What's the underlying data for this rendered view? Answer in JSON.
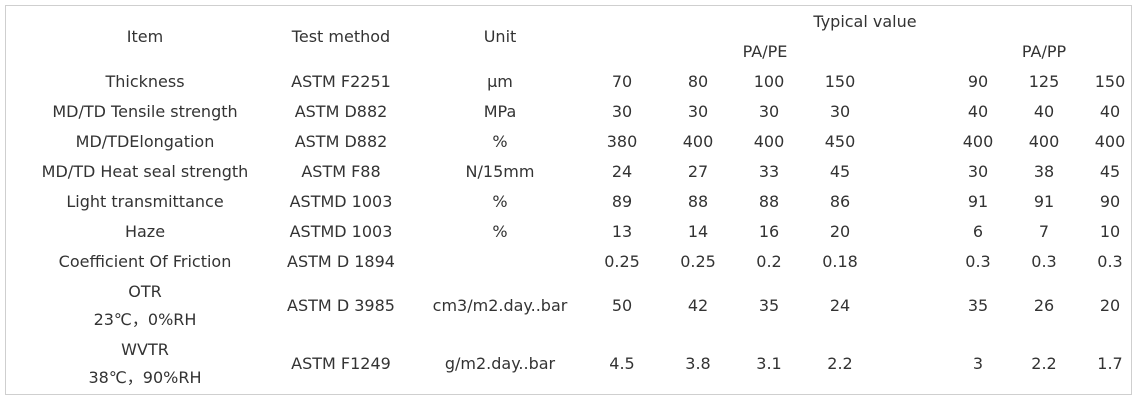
{
  "header": {
    "item": "Item",
    "test_method": "Test method",
    "unit": "Unit",
    "typical_value": "Typical value",
    "group_pape": "PA/PE",
    "group_papp": "PA/PP"
  },
  "rows": [
    {
      "item": "Thickness",
      "sub": "",
      "method": "ASTM F2251",
      "unit": "μm",
      "pape": [
        "70",
        "80",
        "100",
        "150"
      ],
      "papp": [
        "90",
        "125",
        "150"
      ]
    },
    {
      "item": "MD/TD Tensile strength",
      "sub": "",
      "method": "ASTM D882",
      "unit": "MPa",
      "pape": [
        "30",
        "30",
        "30",
        "30"
      ],
      "papp": [
        "40",
        "40",
        "40"
      ]
    },
    {
      "item": "MD/TDElongation",
      "sub": "",
      "method": "ASTM D882",
      "unit": "%",
      "pape": [
        "380",
        "400",
        "400",
        "450"
      ],
      "papp": [
        "400",
        "400",
        "400"
      ]
    },
    {
      "item": "MD/TD Heat seal strength",
      "sub": "",
      "method": "ASTM F88",
      "unit": "N/15mm",
      "pape": [
        "24",
        "27",
        "33",
        "45"
      ],
      "papp": [
        "30",
        "38",
        "45"
      ]
    },
    {
      "item": "Light transmittance",
      "sub": "",
      "method": "ASTMD 1003",
      "unit": "%",
      "pape": [
        "89",
        "88",
        "88",
        "86"
      ],
      "papp": [
        "91",
        "91",
        "90"
      ]
    },
    {
      "item": "Haze",
      "sub": "",
      "method": "ASTMD 1003",
      "unit": "%",
      "pape": [
        "13",
        "14",
        "16",
        "20"
      ],
      "papp": [
        "6",
        "7",
        "10"
      ]
    },
    {
      "item": "Coefficient Of Friction",
      "sub": "",
      "method": "ASTM D 1894",
      "unit": "",
      "pape": [
        "0.25",
        "0.25",
        "0.2",
        "0.18"
      ],
      "papp": [
        "0.3",
        "0.3",
        "0.3"
      ]
    },
    {
      "item": "OTR",
      "sub": "23℃，0%RH",
      "method": "ASTM D 3985",
      "unit": "cm3/m2.day..bar",
      "pape": [
        "50",
        "42",
        "35",
        "24"
      ],
      "papp": [
        "35",
        "26",
        "20"
      ]
    },
    {
      "item": "WVTR",
      "sub": "38℃，90%RH",
      "method": "ASTM F1249",
      "unit": "g/m2.day..bar",
      "pape": [
        "4.5",
        "3.8",
        "3.1",
        "2.2"
      ],
      "papp": [
        "3",
        "2.2",
        "1.7"
      ]
    }
  ]
}
